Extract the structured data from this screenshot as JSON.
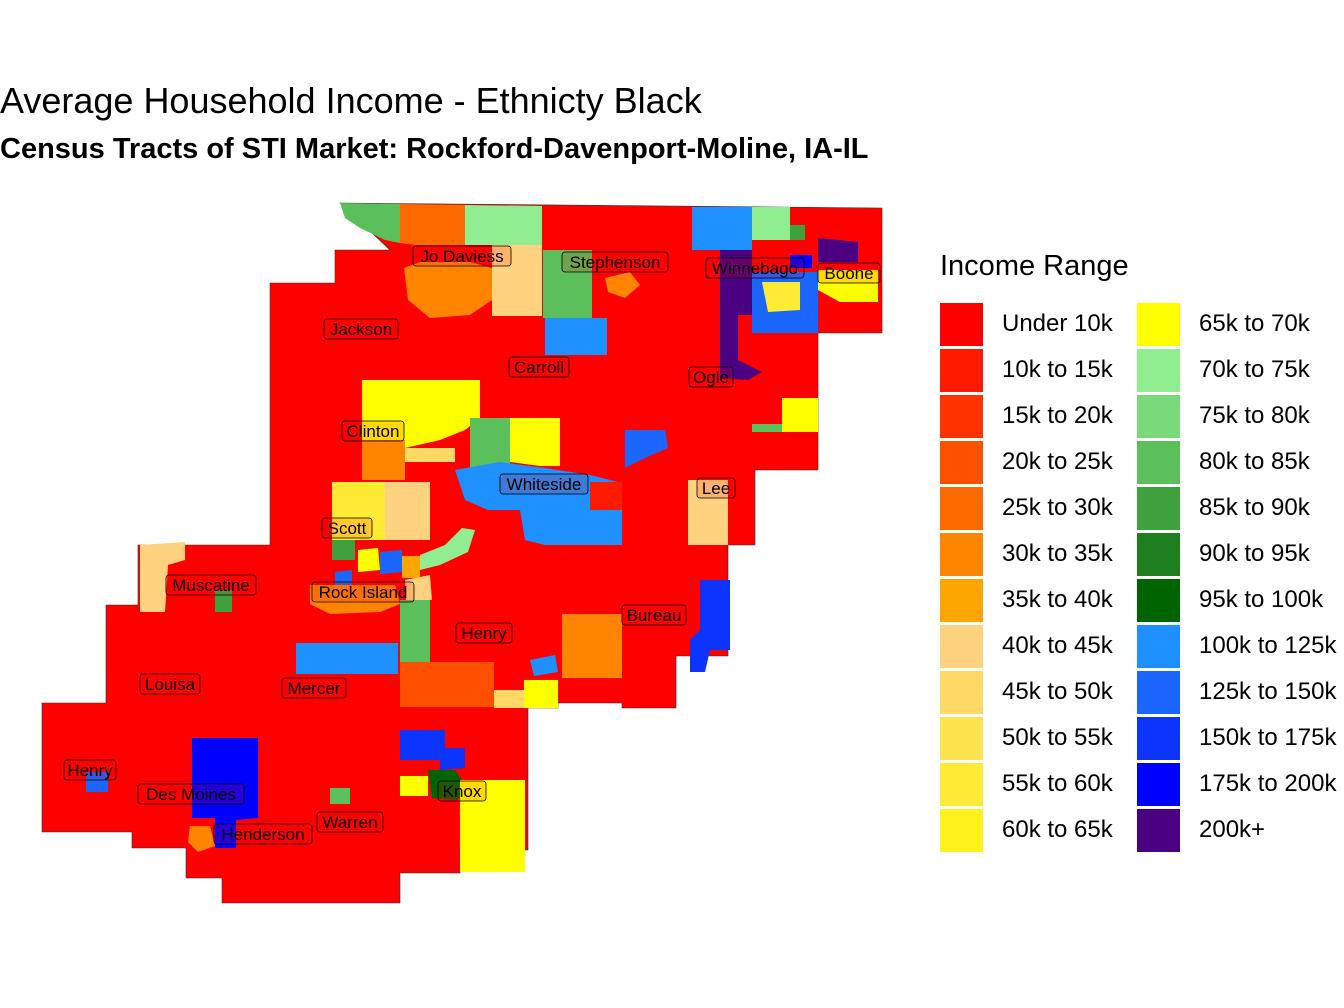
{
  "title": "Average Household Income - Ethnicty Black",
  "subtitle": "Census Tracts of STI Market: Rockford-Davenport-Moline, IA-IL",
  "legend": {
    "title": "Income Range",
    "items": [
      {
        "label": "Under 10k",
        "color": "#FF0000"
      },
      {
        "label": "10k to 15k",
        "color": "#FF1A00"
      },
      {
        "label": "15k to 20k",
        "color": "#FF3300"
      },
      {
        "label": "20k to 25k",
        "color": "#FF5000"
      },
      {
        "label": "25k to 30k",
        "color": "#FF6A00"
      },
      {
        "label": "30k to 35k",
        "color": "#FF8400"
      },
      {
        "label": "35k to 40k",
        "color": "#FFA500"
      },
      {
        "label": "40k to 45k",
        "color": "#FFD27F"
      },
      {
        "label": "45k to 50k",
        "color": "#FFD966"
      },
      {
        "label": "50k to 55k",
        "color": "#FFE34D"
      },
      {
        "label": "55k to 60k",
        "color": "#FFEB33"
      },
      {
        "label": "60k to 65k",
        "color": "#FFF21A"
      },
      {
        "label": "65k to 70k",
        "color": "#FFFF00"
      },
      {
        "label": "70k to 75k",
        "color": "#90EE90"
      },
      {
        "label": "75k to 80k",
        "color": "#77D977"
      },
      {
        "label": "80k to 85k",
        "color": "#5BBF5B"
      },
      {
        "label": "85k to 90k",
        "color": "#3EA13E"
      },
      {
        "label": "90k to 95k",
        "color": "#1E7F1E"
      },
      {
        "label": "95k to 100k",
        "color": "#006400"
      },
      {
        "label": "100k to 125k",
        "color": "#1E90FF"
      },
      {
        "label": "125k to 150k",
        "color": "#1A66FF"
      },
      {
        "label": "150k to 175k",
        "color": "#0D33FF"
      },
      {
        "label": "175k to 200k",
        "color": "#0000FF"
      },
      {
        "label": "200k+",
        "color": "#4B0082"
      }
    ]
  },
  "counties": [
    "Jo Daviess",
    "Stephenson",
    "Winnebago",
    "Boone",
    "Jackson",
    "Carroll",
    "Ogle",
    "Clinton",
    "Whiteside",
    "Lee",
    "Scott",
    "Muscatine",
    "Rock Island",
    "Henry",
    "Bureau",
    "Louisa",
    "Mercer",
    "Henry",
    "Des Moines",
    "Knox",
    "Warren",
    "Henderson"
  ]
}
